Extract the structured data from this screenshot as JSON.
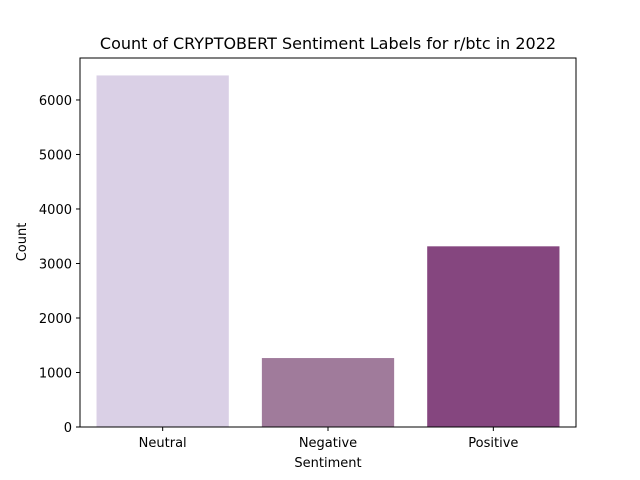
{
  "chart_data": {
    "type": "bar",
    "title": "Count of CRYPTOBERT Sentiment Labels for r/btc in 2022",
    "xlabel": "Sentiment",
    "ylabel": "Count",
    "categories": [
      "Neutral",
      "Negative",
      "Positive"
    ],
    "values": [
      6450,
      1265,
      3315
    ],
    "colors": [
      "#dad0e6",
      "#a07b9b",
      "#85467f"
    ],
    "ylim": [
      0,
      6770
    ],
    "yticks": [
      0,
      1000,
      2000,
      3000,
      4000,
      5000,
      6000
    ],
    "grid": false,
    "legend": "none"
  }
}
